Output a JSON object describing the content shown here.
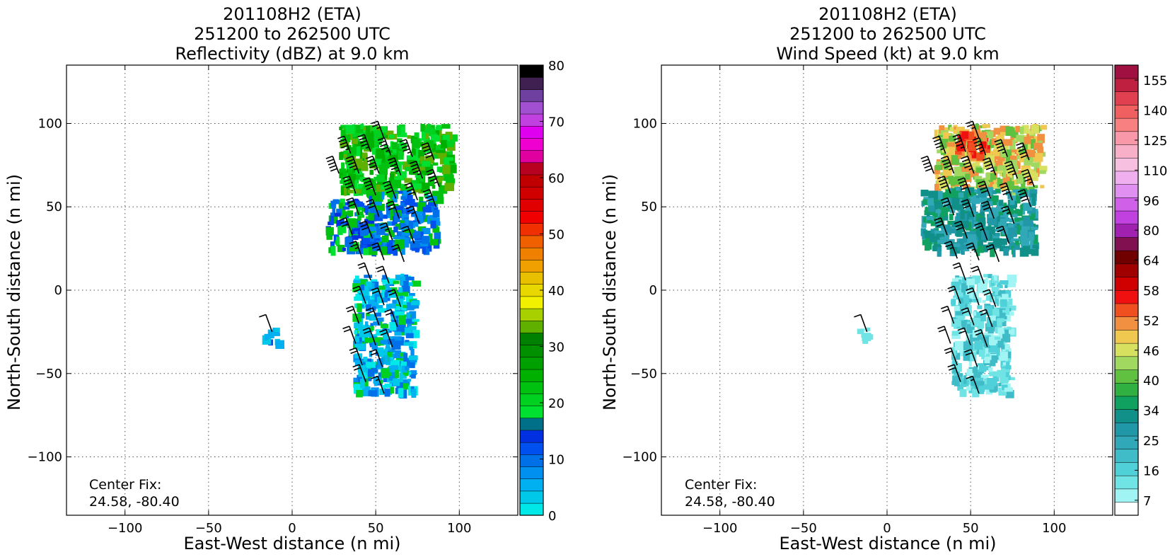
{
  "chart_data": [
    {
      "type": "heatmap",
      "title_lines": [
        "201108H2 (ETA)",
        "251200 to 262500 UTC",
        "Reflectivity (dBZ) at 9.0 km"
      ],
      "xlabel": "East-West distance (n mi)",
      "ylabel": "North-South distance (n mi)",
      "xlim": [
        -135,
        135
      ],
      "ylim": [
        -135,
        135
      ],
      "xticks": [
        -100,
        -50,
        0,
        50,
        100
      ],
      "yticks": [
        -100,
        -50,
        0,
        50,
        100
      ],
      "xtick_labels": [
        "−100",
        "−50",
        "0",
        "50",
        "100"
      ],
      "ytick_labels": [
        "−100",
        "−50",
        "0",
        "50",
        "100"
      ],
      "grid": true,
      "annotation": [
        "Center Fix:",
        "24.58, -80.40"
      ],
      "colorbar": {
        "min": 0,
        "max": 80,
        "ticks": [
          0,
          10,
          20,
          30,
          40,
          50,
          60,
          70,
          80
        ],
        "tick_labels": [
          "0",
          "10",
          "20",
          "30",
          "40",
          "50",
          "60",
          "70",
          "80"
        ],
        "colors": [
          "#00e8e8",
          "#00c8e8",
          "#00b0f0",
          "#0090f0",
          "#0070e8",
          "#0050f0",
          "#0030e0",
          "#007088",
          "#00e030",
          "#00d020",
          "#00c010",
          "#00b000",
          "#00a000",
          "#009000",
          "#008000",
          "#60b000",
          "#a8d000",
          "#f0f000",
          "#e8d800",
          "#e8c000",
          "#f0a000",
          "#f08000",
          "#f06000",
          "#f03000",
          "#f00000",
          "#e00000",
          "#d00000",
          "#c00000",
          "#b80020",
          "#e000a0",
          "#f000d0",
          "#e000f0",
          "#c040e0",
          "#a050d0",
          "#7040a0",
          "#402050",
          "#000000"
        ]
      },
      "wind_barbs": [
        {
          "x": 35,
          "y": 82,
          "s": 45
        },
        {
          "x": 47,
          "y": 83,
          "s": 45
        },
        {
          "x": 59,
          "y": 81,
          "s": 45
        },
        {
          "x": 72,
          "y": 80,
          "s": 45
        },
        {
          "x": 85,
          "y": 78,
          "s": 50
        },
        {
          "x": 55,
          "y": 91,
          "s": 25
        },
        {
          "x": 28,
          "y": 70,
          "s": 50
        },
        {
          "x": 40,
          "y": 70,
          "s": 45
        },
        {
          "x": 52,
          "y": 70,
          "s": 45
        },
        {
          "x": 65,
          "y": 69,
          "s": 45
        },
        {
          "x": 78,
          "y": 67,
          "s": 45
        },
        {
          "x": 88,
          "y": 62,
          "s": 45
        },
        {
          "x": 38,
          "y": 58,
          "s": 40
        },
        {
          "x": 50,
          "y": 57,
          "s": 40
        },
        {
          "x": 62,
          "y": 55,
          "s": 40
        },
        {
          "x": 75,
          "y": 54,
          "s": 40
        },
        {
          "x": 86,
          "y": 50,
          "s": 40
        },
        {
          "x": 40,
          "y": 45,
          "s": 30
        },
        {
          "x": 52,
          "y": 44,
          "s": 30
        },
        {
          "x": 64,
          "y": 43,
          "s": 30
        },
        {
          "x": 76,
          "y": 40,
          "s": 25
        },
        {
          "x": 36,
          "y": 33,
          "s": 30
        },
        {
          "x": 48,
          "y": 31,
          "s": 30
        },
        {
          "x": 60,
          "y": 30,
          "s": 25
        },
        {
          "x": 73,
          "y": 28,
          "s": 20
        },
        {
          "x": 42,
          "y": 19,
          "s": 25
        },
        {
          "x": 55,
          "y": 18,
          "s": 25
        },
        {
          "x": 67,
          "y": 17,
          "s": 20
        },
        {
          "x": 47,
          "y": 6,
          "s": 20
        },
        {
          "x": 58,
          "y": 4,
          "s": 20
        },
        {
          "x": 44,
          "y": -8,
          "s": 20
        },
        {
          "x": 55,
          "y": -9,
          "s": 20
        },
        {
          "x": 65,
          "y": -10,
          "s": 20
        },
        {
          "x": 40,
          "y": -20,
          "s": 20
        },
        {
          "x": 52,
          "y": -21,
          "s": 20
        },
        {
          "x": 63,
          "y": -22,
          "s": 20
        },
        {
          "x": 38,
          "y": -32,
          "s": 20
        },
        {
          "x": 50,
          "y": -33,
          "s": 20
        },
        {
          "x": 60,
          "y": -34,
          "s": 20
        },
        {
          "x": 42,
          "y": -45,
          "s": 20
        },
        {
          "x": 54,
          "y": -46,
          "s": 20
        },
        {
          "x": 44,
          "y": -55,
          "s": 20
        },
        {
          "x": 55,
          "y": -62,
          "s": 15
        },
        {
          "x": -12,
          "y": -25,
          "s": 10
        }
      ]
    },
    {
      "type": "heatmap",
      "title_lines": [
        "201108H2 (ETA)",
        "251200 to 262500 UTC",
        "Wind Speed (kt) at 9.0 km"
      ],
      "xlabel": "East-West distance (n mi)",
      "ylabel": "North-South distance (n mi)",
      "xlim": [
        -135,
        135
      ],
      "ylim": [
        -135,
        135
      ],
      "xticks": [
        -100,
        -50,
        0,
        50,
        100
      ],
      "yticks": [
        -100,
        -50,
        0,
        50,
        100
      ],
      "xtick_labels": [
        "−100",
        "−50",
        "0",
        "50",
        "100"
      ],
      "ytick_labels": [
        "−100",
        "−50",
        "0",
        "50",
        "100"
      ],
      "grid": true,
      "annotation": [
        "Center Fix:",
        "24.58, -80.40"
      ],
      "colorbar": {
        "min": 7,
        "max": 160,
        "ticks": [
          7,
          16,
          25,
          34,
          40,
          46,
          52,
          58,
          64,
          80,
          96,
          110,
          125,
          140,
          155
        ],
        "tick_labels": [
          "7",
          "16",
          "25",
          "34",
          "40",
          "46",
          "52",
          "58",
          "64",
          "80",
          "96",
          "110",
          "125",
          "140",
          "155"
        ],
        "colors": [
          "#ffffff",
          "#a0f4f4",
          "#70e4e4",
          "#50d0d8",
          "#40bcc8",
          "#30a8b8",
          "#2098a8",
          "#109088",
          "#10a060",
          "#30b040",
          "#60c040",
          "#a0d860",
          "#d8e060",
          "#f0c850",
          "#f09040",
          "#f05020",
          "#f01010",
          "#d00000",
          "#a00000",
          "#700000",
          "#801050",
          "#a020b0",
          "#c040e0",
          "#d060e8",
          "#e090f0",
          "#f0b0f0",
          "#f8c0e0",
          "#f8b0c8",
          "#f898a8",
          "#f88080",
          "#f06060",
          "#e04050",
          "#c02040",
          "#a01040"
        ]
      },
      "wind_barbs": [
        {
          "x": 35,
          "y": 82,
          "s": 45
        },
        {
          "x": 47,
          "y": 83,
          "s": 45
        },
        {
          "x": 59,
          "y": 81,
          "s": 45
        },
        {
          "x": 72,
          "y": 80,
          "s": 45
        },
        {
          "x": 85,
          "y": 78,
          "s": 50
        },
        {
          "x": 55,
          "y": 91,
          "s": 25
        },
        {
          "x": 28,
          "y": 70,
          "s": 50
        },
        {
          "x": 40,
          "y": 70,
          "s": 45
        },
        {
          "x": 52,
          "y": 70,
          "s": 45
        },
        {
          "x": 65,
          "y": 69,
          "s": 45
        },
        {
          "x": 78,
          "y": 67,
          "s": 45
        },
        {
          "x": 88,
          "y": 62,
          "s": 45
        },
        {
          "x": 38,
          "y": 58,
          "s": 40
        },
        {
          "x": 50,
          "y": 57,
          "s": 40
        },
        {
          "x": 62,
          "y": 55,
          "s": 40
        },
        {
          "x": 75,
          "y": 54,
          "s": 40
        },
        {
          "x": 86,
          "y": 50,
          "s": 40
        },
        {
          "x": 40,
          "y": 45,
          "s": 30
        },
        {
          "x": 52,
          "y": 44,
          "s": 30
        },
        {
          "x": 64,
          "y": 43,
          "s": 30
        },
        {
          "x": 76,
          "y": 40,
          "s": 25
        },
        {
          "x": 36,
          "y": 33,
          "s": 30
        },
        {
          "x": 48,
          "y": 31,
          "s": 30
        },
        {
          "x": 60,
          "y": 30,
          "s": 25
        },
        {
          "x": 73,
          "y": 28,
          "s": 20
        },
        {
          "x": 42,
          "y": 19,
          "s": 25
        },
        {
          "x": 55,
          "y": 18,
          "s": 25
        },
        {
          "x": 67,
          "y": 17,
          "s": 20
        },
        {
          "x": 47,
          "y": 6,
          "s": 20
        },
        {
          "x": 58,
          "y": 4,
          "s": 20
        },
        {
          "x": 44,
          "y": -8,
          "s": 20
        },
        {
          "x": 55,
          "y": -9,
          "s": 20
        },
        {
          "x": 65,
          "y": -10,
          "s": 20
        },
        {
          "x": 40,
          "y": -20,
          "s": 20
        },
        {
          "x": 52,
          "y": -21,
          "s": 20
        },
        {
          "x": 63,
          "y": -22,
          "s": 20
        },
        {
          "x": 38,
          "y": -32,
          "s": 20
        },
        {
          "x": 50,
          "y": -33,
          "s": 20
        },
        {
          "x": 60,
          "y": -34,
          "s": 20
        },
        {
          "x": 42,
          "y": -45,
          "s": 20
        },
        {
          "x": 54,
          "y": -46,
          "s": 20
        },
        {
          "x": 44,
          "y": -55,
          "s": 20
        },
        {
          "x": 55,
          "y": -62,
          "s": 15
        },
        {
          "x": -12,
          "y": -25,
          "s": 10
        }
      ]
    }
  ]
}
